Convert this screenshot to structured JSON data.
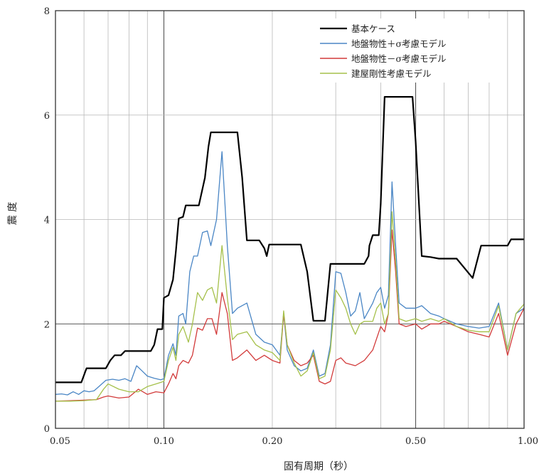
{
  "chart_data": {
    "type": "line",
    "x_scale": "log",
    "xlabel": "固有周期（秒）",
    "ylabel": "震 度",
    "xlim": [
      0.05,
      1.0
    ],
    "ylim": [
      0,
      8
    ],
    "x_ticks": [
      {
        "value": 0.05,
        "label": "0.05"
      },
      {
        "value": 0.1,
        "label": "0.10"
      },
      {
        "value": 0.2,
        "label": "0.20"
      },
      {
        "value": 0.5,
        "label": "0.50"
      },
      {
        "value": 1.0,
        "label": "1.00"
      }
    ],
    "y_ticks": [
      {
        "value": 0,
        "label": "0"
      },
      {
        "value": 2,
        "label": "2"
      },
      {
        "value": 4,
        "label": "4"
      },
      {
        "value": 6,
        "label": "6"
      },
      {
        "value": 8,
        "label": "8"
      }
    ],
    "grid": true,
    "legend_position": "top-right",
    "series": [
      {
        "name": "基本ケース",
        "color": "#000000",
        "points": [
          [
            0.05,
            0.88
          ],
          [
            0.059,
            0.88
          ],
          [
            0.061,
            1.15
          ],
          [
            0.069,
            1.15
          ],
          [
            0.071,
            1.3
          ],
          [
            0.073,
            1.4
          ],
          [
            0.076,
            1.4
          ],
          [
            0.078,
            1.48
          ],
          [
            0.092,
            1.48
          ],
          [
            0.094,
            1.6
          ],
          [
            0.096,
            1.9
          ],
          [
            0.099,
            1.9
          ],
          [
            0.1,
            2.5
          ],
          [
            0.103,
            2.55
          ],
          [
            0.106,
            2.85
          ],
          [
            0.108,
            3.4
          ],
          [
            0.11,
            4.02
          ],
          [
            0.113,
            4.05
          ],
          [
            0.115,
            4.27
          ],
          [
            0.125,
            4.27
          ],
          [
            0.13,
            4.8
          ],
          [
            0.133,
            5.4
          ],
          [
            0.135,
            5.67
          ],
          [
            0.16,
            5.67
          ],
          [
            0.165,
            4.8
          ],
          [
            0.17,
            3.6
          ],
          [
            0.184,
            3.6
          ],
          [
            0.19,
            3.45
          ],
          [
            0.193,
            3.3
          ],
          [
            0.196,
            3.52
          ],
          [
            0.24,
            3.52
          ],
          [
            0.25,
            3.0
          ],
          [
            0.26,
            2.06
          ],
          [
            0.28,
            2.06
          ],
          [
            0.29,
            3.15
          ],
          [
            0.36,
            3.15
          ],
          [
            0.37,
            3.3
          ],
          [
            0.372,
            3.5
          ],
          [
            0.38,
            3.7
          ],
          [
            0.395,
            3.7
          ],
          [
            0.4,
            4.3
          ],
          [
            0.41,
            6.35
          ],
          [
            0.49,
            6.35
          ],
          [
            0.5,
            5.5
          ],
          [
            0.52,
            3.3
          ],
          [
            0.55,
            3.28
          ],
          [
            0.58,
            3.25
          ],
          [
            0.65,
            3.25
          ],
          [
            0.72,
            2.88
          ],
          [
            0.76,
            3.5
          ],
          [
            0.9,
            3.5
          ],
          [
            0.92,
            3.62
          ],
          [
            1.0,
            3.62
          ]
        ]
      },
      {
        "name": "地盤物性＋σ考慮モデル",
        "color": "#4a86c5",
        "points": [
          [
            0.05,
            0.65
          ],
          [
            0.052,
            0.66
          ],
          [
            0.054,
            0.64
          ],
          [
            0.056,
            0.7
          ],
          [
            0.058,
            0.65
          ],
          [
            0.06,
            0.72
          ],
          [
            0.062,
            0.7
          ],
          [
            0.064,
            0.72
          ],
          [
            0.066,
            0.8
          ],
          [
            0.069,
            0.92
          ],
          [
            0.072,
            0.94
          ],
          [
            0.075,
            0.92
          ],
          [
            0.078,
            0.95
          ],
          [
            0.081,
            0.9
          ],
          [
            0.084,
            1.2
          ],
          [
            0.087,
            1.1
          ],
          [
            0.09,
            1.0
          ],
          [
            0.094,
            0.96
          ],
          [
            0.098,
            0.93
          ],
          [
            0.1,
            0.95
          ],
          [
            0.103,
            1.4
          ],
          [
            0.106,
            1.62
          ],
          [
            0.108,
            1.4
          ],
          [
            0.11,
            2.15
          ],
          [
            0.113,
            2.2
          ],
          [
            0.115,
            2.0
          ],
          [
            0.118,
            3.0
          ],
          [
            0.121,
            3.3
          ],
          [
            0.124,
            3.3
          ],
          [
            0.128,
            3.75
          ],
          [
            0.132,
            3.78
          ],
          [
            0.135,
            3.5
          ],
          [
            0.14,
            4.0
          ],
          [
            0.145,
            5.3
          ],
          [
            0.15,
            3.5
          ],
          [
            0.155,
            2.2
          ],
          [
            0.16,
            2.3
          ],
          [
            0.17,
            2.4
          ],
          [
            0.18,
            1.8
          ],
          [
            0.19,
            1.65
          ],
          [
            0.2,
            1.6
          ],
          [
            0.21,
            1.4
          ],
          [
            0.215,
            2.2
          ],
          [
            0.22,
            1.5
          ],
          [
            0.23,
            1.2
          ],
          [
            0.24,
            1.1
          ],
          [
            0.25,
            1.15
          ],
          [
            0.26,
            1.5
          ],
          [
            0.27,
            1.0
          ],
          [
            0.28,
            1.05
          ],
          [
            0.29,
            1.6
          ],
          [
            0.3,
            3.0
          ],
          [
            0.31,
            2.97
          ],
          [
            0.32,
            2.6
          ],
          [
            0.33,
            2.15
          ],
          [
            0.34,
            2.25
          ],
          [
            0.35,
            2.6
          ],
          [
            0.36,
            2.1
          ],
          [
            0.38,
            2.4
          ],
          [
            0.39,
            2.6
          ],
          [
            0.4,
            2.7
          ],
          [
            0.41,
            2.3
          ],
          [
            0.42,
            2.55
          ],
          [
            0.43,
            4.72
          ],
          [
            0.44,
            3.5
          ],
          [
            0.45,
            2.4
          ],
          [
            0.47,
            2.3
          ],
          [
            0.5,
            2.3
          ],
          [
            0.52,
            2.35
          ],
          [
            0.55,
            2.2
          ],
          [
            0.58,
            2.15
          ],
          [
            0.6,
            2.1
          ],
          [
            0.65,
            2.0
          ],
          [
            0.7,
            1.95
          ],
          [
            0.75,
            1.92
          ],
          [
            0.8,
            1.95
          ],
          [
            0.85,
            2.4
          ],
          [
            0.9,
            1.5
          ],
          [
            0.95,
            2.2
          ],
          [
            1.0,
            2.3
          ]
        ]
      },
      {
        "name": "地盤物性－σ考慮モデル",
        "color": "#d23a3a",
        "points": [
          [
            0.05,
            0.52
          ],
          [
            0.055,
            0.53
          ],
          [
            0.06,
            0.54
          ],
          [
            0.065,
            0.55
          ],
          [
            0.068,
            0.6
          ],
          [
            0.07,
            0.62
          ],
          [
            0.075,
            0.58
          ],
          [
            0.08,
            0.6
          ],
          [
            0.085,
            0.75
          ],
          [
            0.09,
            0.65
          ],
          [
            0.095,
            0.7
          ],
          [
            0.1,
            0.68
          ],
          [
            0.103,
            0.85
          ],
          [
            0.106,
            1.05
          ],
          [
            0.108,
            0.95
          ],
          [
            0.11,
            1.2
          ],
          [
            0.113,
            1.3
          ],
          [
            0.117,
            1.25
          ],
          [
            0.12,
            1.4
          ],
          [
            0.124,
            1.92
          ],
          [
            0.128,
            1.88
          ],
          [
            0.132,
            2.1
          ],
          [
            0.136,
            2.1
          ],
          [
            0.14,
            1.8
          ],
          [
            0.145,
            2.6
          ],
          [
            0.15,
            2.2
          ],
          [
            0.155,
            1.3
          ],
          [
            0.16,
            1.35
          ],
          [
            0.17,
            1.5
          ],
          [
            0.18,
            1.3
          ],
          [
            0.19,
            1.4
          ],
          [
            0.2,
            1.3
          ],
          [
            0.21,
            1.25
          ],
          [
            0.215,
            2.2
          ],
          [
            0.22,
            1.6
          ],
          [
            0.23,
            1.3
          ],
          [
            0.24,
            1.2
          ],
          [
            0.25,
            1.25
          ],
          [
            0.26,
            1.4
          ],
          [
            0.27,
            0.9
          ],
          [
            0.28,
            0.85
          ],
          [
            0.29,
            0.9
          ],
          [
            0.3,
            1.3
          ],
          [
            0.31,
            1.35
          ],
          [
            0.32,
            1.25
          ],
          [
            0.34,
            1.2
          ],
          [
            0.36,
            1.3
          ],
          [
            0.38,
            1.5
          ],
          [
            0.4,
            1.95
          ],
          [
            0.41,
            1.85
          ],
          [
            0.42,
            2.2
          ],
          [
            0.43,
            3.8
          ],
          [
            0.44,
            3.0
          ],
          [
            0.45,
            2.0
          ],
          [
            0.47,
            1.95
          ],
          [
            0.5,
            2.0
          ],
          [
            0.52,
            1.9
          ],
          [
            0.55,
            2.0
          ],
          [
            0.58,
            2.0
          ],
          [
            0.6,
            2.05
          ],
          [
            0.65,
            1.95
          ],
          [
            0.7,
            1.85
          ],
          [
            0.75,
            1.8
          ],
          [
            0.8,
            1.75
          ],
          [
            0.85,
            2.2
          ],
          [
            0.9,
            1.4
          ],
          [
            0.95,
            2.0
          ],
          [
            1.0,
            2.3
          ]
        ]
      },
      {
        "name": "建屋剛性考慮モデル",
        "color": "#a5c04a",
        "points": [
          [
            0.05,
            0.52
          ],
          [
            0.055,
            0.52
          ],
          [
            0.06,
            0.53
          ],
          [
            0.065,
            0.55
          ],
          [
            0.068,
            0.75
          ],
          [
            0.07,
            0.85
          ],
          [
            0.075,
            0.75
          ],
          [
            0.08,
            0.7
          ],
          [
            0.085,
            0.7
          ],
          [
            0.09,
            0.8
          ],
          [
            0.095,
            0.85
          ],
          [
            0.1,
            0.9
          ],
          [
            0.103,
            1.3
          ],
          [
            0.106,
            1.55
          ],
          [
            0.108,
            1.3
          ],
          [
            0.11,
            1.8
          ],
          [
            0.113,
            1.95
          ],
          [
            0.117,
            1.65
          ],
          [
            0.12,
            2.0
          ],
          [
            0.124,
            2.6
          ],
          [
            0.128,
            2.45
          ],
          [
            0.132,
            2.65
          ],
          [
            0.136,
            2.7
          ],
          [
            0.14,
            2.4
          ],
          [
            0.145,
            3.5
          ],
          [
            0.15,
            2.5
          ],
          [
            0.155,
            1.7
          ],
          [
            0.16,
            1.8
          ],
          [
            0.17,
            1.85
          ],
          [
            0.18,
            1.6
          ],
          [
            0.19,
            1.5
          ],
          [
            0.2,
            1.45
          ],
          [
            0.21,
            1.3
          ],
          [
            0.215,
            2.25
          ],
          [
            0.22,
            1.6
          ],
          [
            0.23,
            1.25
          ],
          [
            0.24,
            1.0
          ],
          [
            0.25,
            1.1
          ],
          [
            0.26,
            1.45
          ],
          [
            0.27,
            0.95
          ],
          [
            0.28,
            1.0
          ],
          [
            0.29,
            1.5
          ],
          [
            0.3,
            2.65
          ],
          [
            0.31,
            2.5
          ],
          [
            0.32,
            2.3
          ],
          [
            0.33,
            2.0
          ],
          [
            0.34,
            1.8
          ],
          [
            0.35,
            2.0
          ],
          [
            0.36,
            2.05
          ],
          [
            0.38,
            2.05
          ],
          [
            0.39,
            2.3
          ],
          [
            0.4,
            2.4
          ],
          [
            0.41,
            2.0
          ],
          [
            0.42,
            2.2
          ],
          [
            0.43,
            4.15
          ],
          [
            0.44,
            3.2
          ],
          [
            0.45,
            2.1
          ],
          [
            0.47,
            2.05
          ],
          [
            0.5,
            2.1
          ],
          [
            0.52,
            2.05
          ],
          [
            0.55,
            2.1
          ],
          [
            0.58,
            2.05
          ],
          [
            0.6,
            2.1
          ],
          [
            0.65,
            1.95
          ],
          [
            0.7,
            1.88
          ],
          [
            0.75,
            1.85
          ],
          [
            0.8,
            1.85
          ],
          [
            0.85,
            2.35
          ],
          [
            0.9,
            1.5
          ],
          [
            0.95,
            2.2
          ],
          [
            1.0,
            2.38
          ]
        ]
      }
    ]
  }
}
